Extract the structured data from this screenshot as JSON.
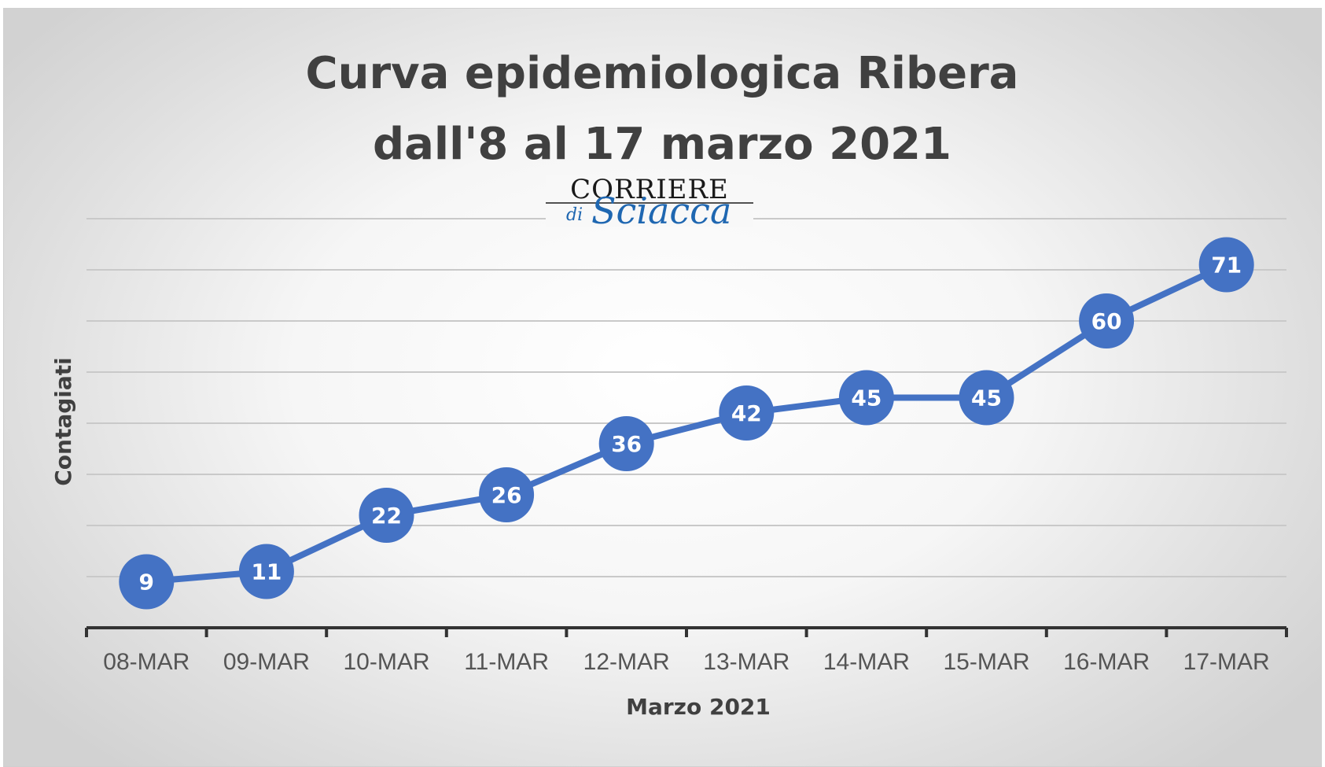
{
  "chart_data": {
    "type": "line",
    "title": [
      "Curva epidemiologica Ribera",
      "dall'8 al 17 marzo 2021"
    ],
    "xlabel": "Marzo 2021",
    "ylabel": "Contagiati",
    "categories": [
      "08-MAR",
      "09-MAR",
      "10-MAR",
      "11-MAR",
      "12-MAR",
      "13-MAR",
      "14-MAR",
      "15-MAR",
      "16-MAR",
      "17-MAR"
    ],
    "series": [
      {
        "values": [
          9,
          11,
          22,
          26,
          36,
          42,
          45,
          45,
          60,
          71
        ],
        "color": "#4472c4"
      }
    ],
    "ylim": [
      0,
      80
    ],
    "grid": true,
    "y_tick_labels_shown": false,
    "data_labels": true,
    "legend": "none"
  },
  "logo": {
    "line1": "CORRIERE",
    "line2_prefix": "di",
    "line2": "Sciacca",
    "colors": {
      "top": "#1a1a1a",
      "script": "#1f67b1"
    }
  },
  "colors": {
    "title": "#404040",
    "gridline": "#c9c9c9",
    "axis": "#333333",
    "marker": "#4472c4"
  }
}
